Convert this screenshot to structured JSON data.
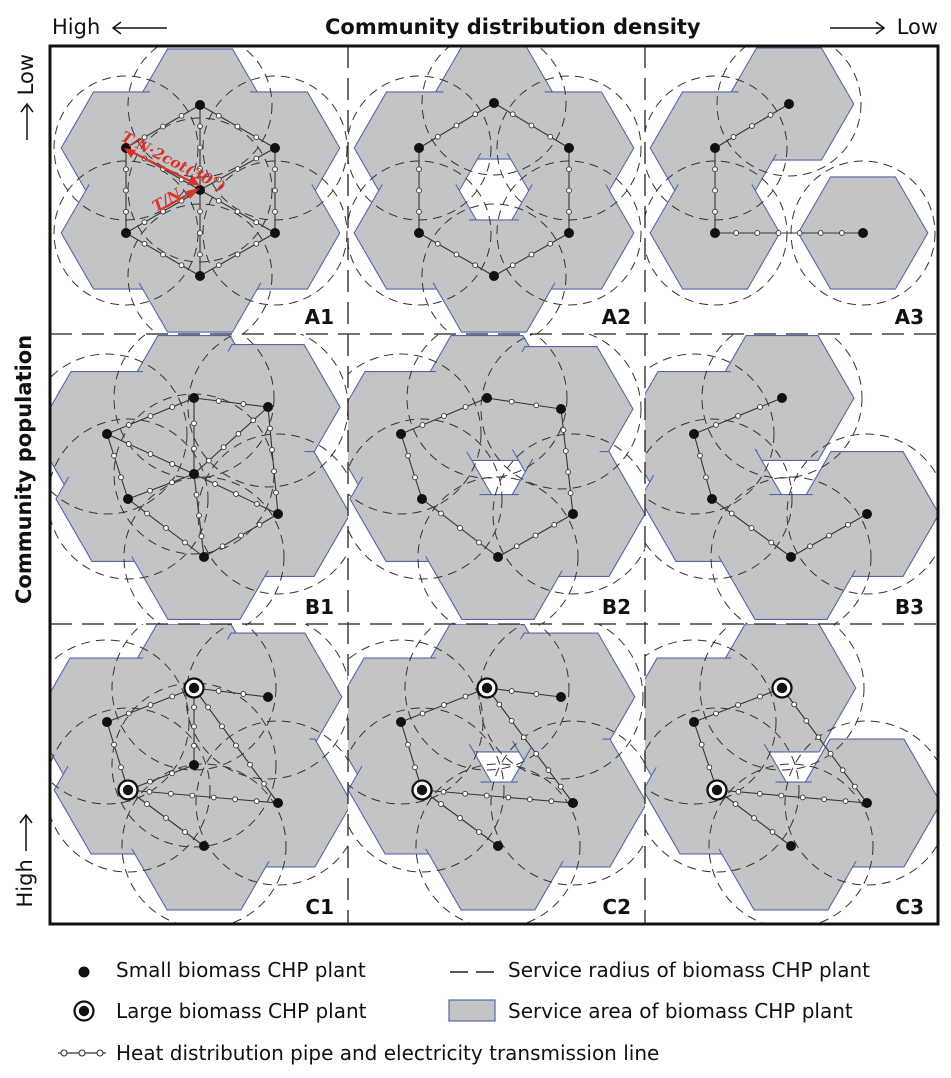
{
  "header": {
    "title": "Community distribution density",
    "left_label": "High",
    "right_label": "Low"
  },
  "side": {
    "title": "Community population",
    "top_label": "Low",
    "bottom_label": "High"
  },
  "panels": [
    "A1",
    "A2",
    "A3",
    "B1",
    "B2",
    "B3",
    "C1",
    "C2",
    "C3"
  ],
  "annotations": {
    "distance_long": "T/N·2cot(30°)",
    "distance_short": "T/N"
  },
  "legend": {
    "small_plant": "Small biomass CHP plant",
    "large_plant": "Large biomass CHP plant",
    "service_radius": "Service radius of biomass CHP plant",
    "service_area": "Service area of biomass CHP plant",
    "pipe_line": "Heat distribution pipe and electricity transmission line"
  },
  "colors": {
    "service_area": "#c3c4c6",
    "service_area_edge": "#5566a8",
    "annotation": "#d8342a",
    "ink": "#111111"
  }
}
